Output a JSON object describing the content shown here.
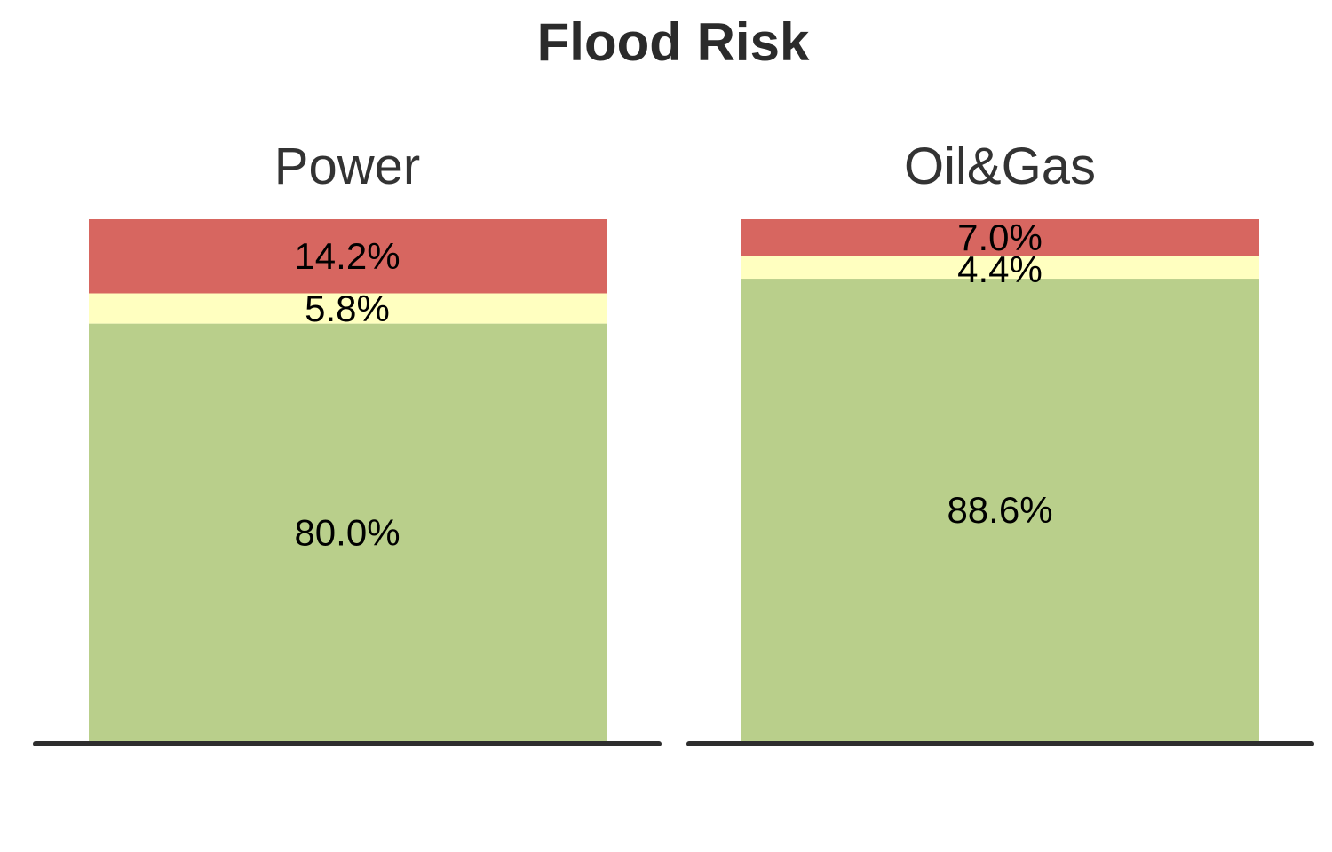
{
  "chart_data": {
    "type": "bar",
    "stacked": true,
    "title": "Flood Risk",
    "categories": [
      "Power",
      "Oil&Gas"
    ],
    "series": [
      {
        "color": "#b9cf8b",
        "values": [
          80.0,
          88.6
        ],
        "labels": [
          "80.0%",
          "88.6%"
        ]
      },
      {
        "color": "#ffffc0",
        "values": [
          5.8,
          4.4
        ],
        "labels": [
          "5.8%",
          "4.4%"
        ]
      },
      {
        "color": "#d76660",
        "values": [
          14.2,
          7.0
        ],
        "labels": [
          "14.2%",
          "7.0%"
        ]
      }
    ],
    "ylim": [
      0,
      100
    ],
    "grid": false,
    "legend": "none"
  }
}
